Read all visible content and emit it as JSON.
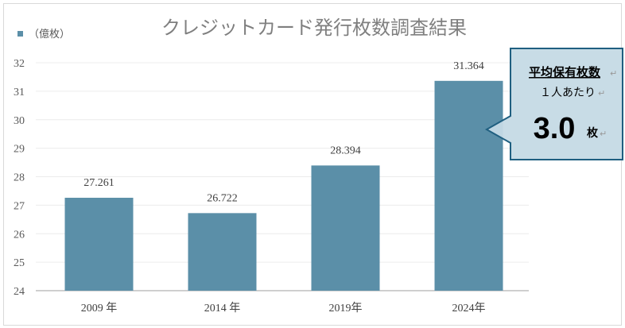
{
  "chart_data": {
    "type": "bar",
    "title": "クレジットカード発行枚数調査結果",
    "legend": {
      "label": "（億枚）",
      "color": "#5b8fa8",
      "placement": "top-left"
    },
    "categories": [
      "2009 年",
      "2014 年",
      "2019年",
      "2024年"
    ],
    "values": [
      27.261,
      26.722,
      28.394,
      31.364
    ],
    "data_labels": [
      "27.261",
      "26.722",
      "28.394",
      "31.364"
    ],
    "ylim": [
      24,
      32
    ],
    "yticks": [
      "24",
      "25",
      "26",
      "27",
      "28",
      "29",
      "30",
      "31",
      "32"
    ],
    "grid": true,
    "bar_color": "#5b8fa8",
    "annotation": {
      "line1": "平均保有枚数",
      "line2": "１人あたり",
      "value": "3.0",
      "unit": "枚",
      "return_mark": "↵",
      "fill": "#c5dae5",
      "border": "#1f5f80"
    }
  }
}
